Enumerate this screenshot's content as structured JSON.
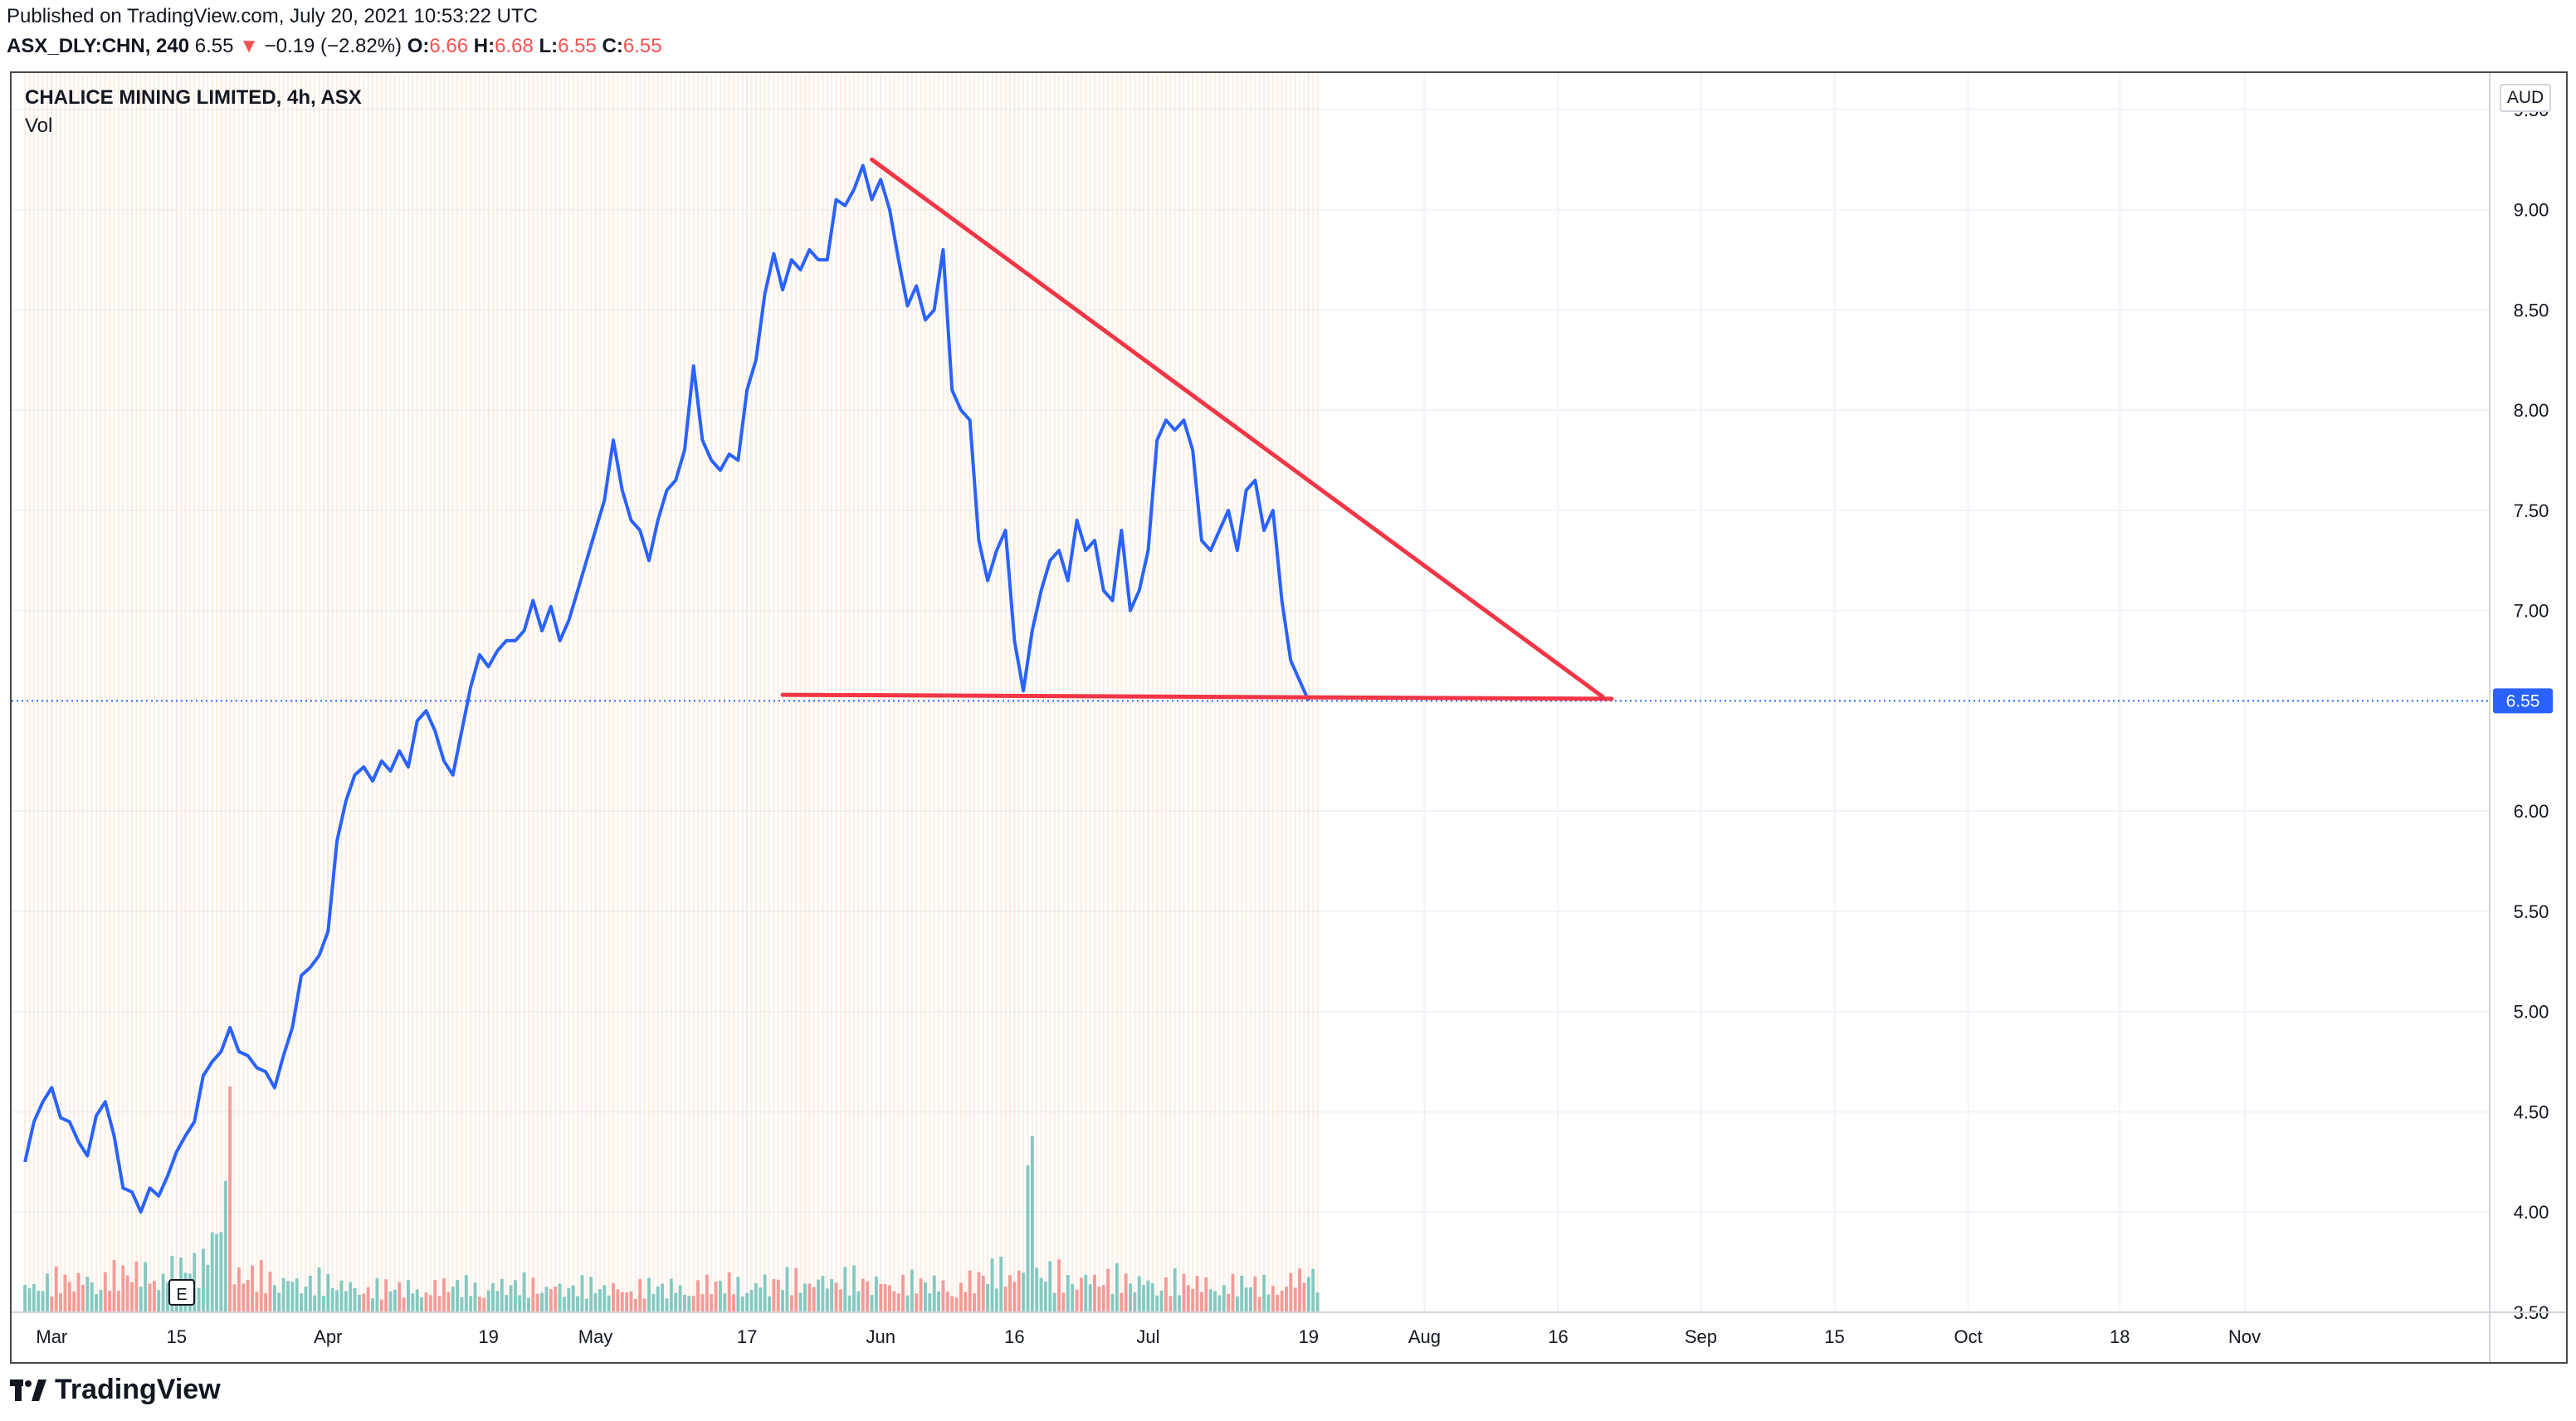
{
  "header": {
    "published": "Published on TradingView.com, July 20, 2021 10:53:22 UTC",
    "symbol": "ASX_DLY:CHN, 240",
    "last": "6.55",
    "change_arrow": "▼",
    "change": "−0.19 (−2.82%)",
    "o_label": "O:",
    "o": "6.66",
    "h_label": "H:",
    "h": "6.68",
    "l_label": "L:",
    "l": "6.55",
    "c_label": "C:",
    "c": "6.55"
  },
  "legend": {
    "title": "CHALICE MINING LIMITED, 4h, ASX",
    "vol": "Vol"
  },
  "currency": "AUD",
  "brand": {
    "name": "TradingView",
    "icon": "tradingview-logo-icon"
  },
  "colors": {
    "price_line": "#2962ff",
    "trendline": "#f23645",
    "vol_up": "#26a69a",
    "vol_down": "#ef5350",
    "price_tag": "#2962ff"
  },
  "chart_data": {
    "type": "line",
    "title": "CHALICE MINING LIMITED, 4h, ASX",
    "xlabel": "",
    "ylabel": "AUD",
    "ylim": [
      3.5,
      9.75
    ],
    "x_range_days": [
      -1.5,
      276.5
    ],
    "y_tick_labels": [
      "9.50",
      "9.00",
      "8.50",
      "8.00",
      "7.50",
      "7.00",
      "6.00",
      "5.50",
      "5.00",
      "4.50",
      "4.00",
      "3.50"
    ],
    "x_tick_labels": [
      {
        "label": "Mar",
        "day": 3
      },
      {
        "label": "15",
        "day": 17
      },
      {
        "label": "Apr",
        "day": 34
      },
      {
        "label": "19",
        "day": 52
      },
      {
        "label": "May",
        "day": 64
      },
      {
        "label": "17",
        "day": 81
      },
      {
        "label": "Jun",
        "day": 96
      },
      {
        "label": "16",
        "day": 111
      },
      {
        "label": "Jul",
        "day": 126
      },
      {
        "label": "19",
        "day": 144
      },
      {
        "label": "Aug",
        "day": 157
      },
      {
        "label": "16",
        "day": 172
      },
      {
        "label": "Sep",
        "day": 188
      },
      {
        "label": "15",
        "day": 203
      },
      {
        "label": "Oct",
        "day": 218
      },
      {
        "label": "18",
        "day": 235
      },
      {
        "label": "Nov",
        "day": 249
      }
    ],
    "series": [
      {
        "name": "ASX_DLY:CHN close",
        "points": [
          [
            0,
            4.25
          ],
          [
            1,
            4.45
          ],
          [
            2,
            4.55
          ],
          [
            3,
            4.62
          ],
          [
            4,
            4.47
          ],
          [
            5,
            4.45
          ],
          [
            6,
            4.35
          ],
          [
            7,
            4.28
          ],
          [
            8,
            4.48
          ],
          [
            9,
            4.55
          ],
          [
            10,
            4.38
          ],
          [
            11,
            4.12
          ],
          [
            12,
            4.1
          ],
          [
            13,
            4.0
          ],
          [
            14,
            4.12
          ],
          [
            15,
            4.08
          ],
          [
            16,
            4.18
          ],
          [
            17,
            4.3
          ],
          [
            18,
            4.38
          ],
          [
            19,
            4.45
          ],
          [
            20,
            4.68
          ],
          [
            21,
            4.75
          ],
          [
            22,
            4.8
          ],
          [
            23,
            4.92
          ],
          [
            24,
            4.8
          ],
          [
            25,
            4.78
          ],
          [
            26,
            4.72
          ],
          [
            27,
            4.7
          ],
          [
            28,
            4.62
          ],
          [
            29,
            4.78
          ],
          [
            30,
            4.92
          ],
          [
            31,
            5.18
          ],
          [
            32,
            5.22
          ],
          [
            33,
            5.28
          ],
          [
            34,
            5.4
          ],
          [
            35,
            5.85
          ],
          [
            36,
            6.05
          ],
          [
            37,
            6.18
          ],
          [
            38,
            6.22
          ],
          [
            39,
            6.15
          ],
          [
            40,
            6.25
          ],
          [
            41,
            6.2
          ],
          [
            42,
            6.3
          ],
          [
            43,
            6.22
          ],
          [
            44,
            6.45
          ],
          [
            45,
            6.5
          ],
          [
            46,
            6.4
          ],
          [
            47,
            6.25
          ],
          [
            48,
            6.18
          ],
          [
            49,
            6.4
          ],
          [
            50,
            6.62
          ],
          [
            51,
            6.78
          ],
          [
            52,
            6.72
          ],
          [
            53,
            6.8
          ],
          [
            54,
            6.85
          ],
          [
            55,
            6.85
          ],
          [
            56,
            6.9
          ],
          [
            57,
            7.05
          ],
          [
            58,
            6.9
          ],
          [
            59,
            7.02
          ],
          [
            60,
            6.85
          ],
          [
            61,
            6.95
          ],
          [
            62,
            7.1
          ],
          [
            63,
            7.25
          ],
          [
            64,
            7.4
          ],
          [
            65,
            7.55
          ],
          [
            66,
            7.85
          ],
          [
            67,
            7.6
          ],
          [
            68,
            7.45
          ],
          [
            69,
            7.4
          ],
          [
            70,
            7.25
          ],
          [
            71,
            7.45
          ],
          [
            72,
            7.6
          ],
          [
            73,
            7.65
          ],
          [
            74,
            7.8
          ],
          [
            75,
            8.22
          ],
          [
            76,
            7.85
          ],
          [
            77,
            7.75
          ],
          [
            78,
            7.7
          ],
          [
            79,
            7.78
          ],
          [
            80,
            7.75
          ],
          [
            81,
            8.1
          ],
          [
            82,
            8.25
          ],
          [
            83,
            8.58
          ],
          [
            84,
            8.78
          ],
          [
            85,
            8.6
          ],
          [
            86,
            8.75
          ],
          [
            87,
            8.7
          ],
          [
            88,
            8.8
          ],
          [
            89,
            8.75
          ],
          [
            90,
            8.75
          ],
          [
            91,
            9.05
          ],
          [
            92,
            9.02
          ],
          [
            93,
            9.1
          ],
          [
            94,
            9.22
          ],
          [
            95,
            9.05
          ],
          [
            96,
            9.15
          ],
          [
            97,
            9.0
          ],
          [
            98,
            8.75
          ],
          [
            99,
            8.52
          ],
          [
            100,
            8.62
          ],
          [
            101,
            8.45
          ],
          [
            102,
            8.5
          ],
          [
            103,
            8.8
          ],
          [
            104,
            8.1
          ],
          [
            105,
            8.0
          ],
          [
            106,
            7.95
          ],
          [
            107,
            7.35
          ],
          [
            108,
            7.15
          ],
          [
            109,
            7.3
          ],
          [
            110,
            7.4
          ],
          [
            111,
            6.85
          ],
          [
            112,
            6.6
          ],
          [
            113,
            6.9
          ],
          [
            114,
            7.1
          ],
          [
            115,
            7.25
          ],
          [
            116,
            7.3
          ],
          [
            117,
            7.15
          ],
          [
            118,
            7.45
          ],
          [
            119,
            7.3
          ],
          [
            120,
            7.35
          ],
          [
            121,
            7.1
          ],
          [
            122,
            7.05
          ],
          [
            123,
            7.4
          ],
          [
            124,
            7.0
          ],
          [
            125,
            7.1
          ],
          [
            126,
            7.3
          ],
          [
            127,
            7.85
          ],
          [
            128,
            7.95
          ],
          [
            129,
            7.9
          ],
          [
            130,
            7.95
          ],
          [
            131,
            7.8
          ],
          [
            132,
            7.35
          ],
          [
            133,
            7.3
          ],
          [
            134,
            7.4
          ],
          [
            135,
            7.5
          ],
          [
            136,
            7.3
          ],
          [
            137,
            7.6
          ],
          [
            138,
            7.65
          ],
          [
            139,
            7.4
          ],
          [
            140,
            7.5
          ],
          [
            141,
            7.05
          ],
          [
            142,
            6.75
          ],
          [
            143,
            6.65
          ],
          [
            144,
            6.55
          ]
        ]
      },
      {
        "name": "Volume (relative)",
        "anchors": [
          [
            0,
            0.18
          ],
          [
            20,
            0.3
          ],
          [
            23,
            1.0
          ],
          [
            24,
            0.25
          ],
          [
            40,
            0.16
          ],
          [
            55,
            0.18
          ],
          [
            70,
            0.16
          ],
          [
            90,
            0.22
          ],
          [
            105,
            0.18
          ],
          [
            112,
            0.32
          ],
          [
            113,
            0.78
          ],
          [
            114,
            0.25
          ],
          [
            128,
            0.2
          ],
          [
            140,
            0.18
          ],
          [
            144,
            0.25
          ],
          [
            146,
            0.2
          ]
        ],
        "bars_per_day": 2,
        "max_height_units": 0.17
      },
      {
        "name": "Descending trendline",
        "points": [
          [
            95,
            9.25
          ],
          [
            177,
            6.57
          ]
        ]
      },
      {
        "name": "Support line",
        "points": [
          [
            85,
            6.58
          ],
          [
            178,
            6.56
          ]
        ]
      }
    ],
    "last_price": 6.55,
    "last_price_label": "6.55"
  }
}
